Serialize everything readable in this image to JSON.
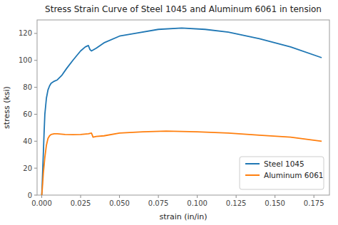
{
  "chart_data": {
    "type": "line",
    "title": "Stress Strain Curve of Steel 1045 and Aluminum 6061 in tension",
    "xlabel": "strain (in/in)",
    "ylabel": "stress (ksi)",
    "xlim": [
      -0.003,
      0.185
    ],
    "ylim": [
      0,
      130
    ],
    "xticks": [
      {
        "value": 0.0,
        "label": "0.000"
      },
      0.025,
      {
        "value": 0.05,
        "label": "0.050"
      },
      0.075,
      {
        "value": 0.1,
        "label": "0.100"
      },
      0.125,
      {
        "value": 0.15,
        "label": "0.150"
      },
      0.175
    ],
    "yticks": [
      0,
      20,
      40,
      60,
      80,
      100,
      120
    ],
    "grid": false,
    "legend": "lower right",
    "series": [
      {
        "name": "Steel 1045",
        "color": "#1f77b4",
        "x": [
          0,
          0.0003,
          0.0006,
          0.001,
          0.0015,
          0.002,
          0.003,
          0.004,
          0.005,
          0.006,
          0.008,
          0.01,
          0.013,
          0.016,
          0.02,
          0.025,
          0.028,
          0.03,
          0.031,
          0.032,
          0.035,
          0.04,
          0.05,
          0.06,
          0.075,
          0.09,
          0.105,
          0.12,
          0.14,
          0.16,
          0.18
        ],
        "values": [
          0,
          8,
          18,
          30,
          46,
          60,
          72,
          78,
          81,
          83,
          84.5,
          85.5,
          89,
          94,
          100,
          107,
          110,
          111,
          108,
          107,
          109,
          113,
          118,
          120,
          123,
          124,
          123,
          121,
          116,
          110,
          102
        ]
      },
      {
        "name": "Aluminum 6061",
        "color": "#ff7f0e",
        "x": [
          0,
          0.0003,
          0.0006,
          0.001,
          0.002,
          0.003,
          0.004,
          0.005,
          0.006,
          0.008,
          0.01,
          0.015,
          0.02,
          0.025,
          0.03,
          0.032,
          0.033,
          0.035,
          0.04,
          0.05,
          0.065,
          0.08,
          0.1,
          0.12,
          0.14,
          0.16,
          0.18
        ],
        "values": [
          0,
          4,
          9,
          16,
          28,
          37,
          42,
          44,
          45,
          45.5,
          45.5,
          45,
          44.8,
          45,
          45.5,
          46,
          43,
          43.5,
          44,
          46,
          47,
          47.5,
          47,
          46,
          44.5,
          43,
          40
        ]
      }
    ]
  }
}
